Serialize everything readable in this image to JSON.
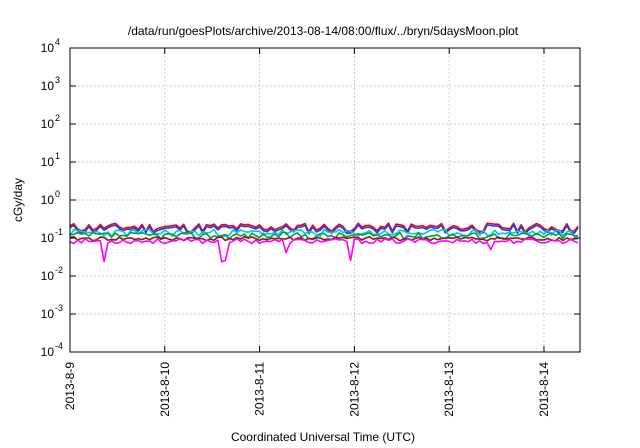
{
  "chart_data": {
    "type": "line",
    "title": "/data/run/goesPlots/archive/2013-08-14/08:00/flux/../bryn/5daysMoon.plot",
    "xlabel": "Coordinated Universal Time (UTC)",
    "ylabel": "cGy/day",
    "yscale": "log",
    "ylim": [
      0.0001,
      10000
    ],
    "xlim": [
      0,
      5.38
    ],
    "grid": true,
    "x_tick_values": [
      0,
      1,
      2,
      3,
      4,
      5
    ],
    "x_tick_labels": [
      "2013-8-9",
      "2013-8-10",
      "2013-8-11",
      "2013-8-12",
      "2013-8-13",
      "2013-8-14"
    ],
    "y_tick_values": [
      0.0001,
      0.001,
      0.01,
      0.1,
      1,
      10,
      100,
      1000,
      10000
    ],
    "y_tick_labels": [
      {
        "base": "10",
        "exp": "-4"
      },
      {
        "base": "10",
        "exp": "-3"
      },
      {
        "base": "10",
        "exp": "-2"
      },
      {
        "base": "10",
        "exp": "-1"
      },
      {
        "base": "10",
        "exp": "0"
      },
      {
        "base": "10",
        "exp": "1"
      },
      {
        "base": "10",
        "exp": "2"
      },
      {
        "base": "10",
        "exp": "3"
      },
      {
        "base": "10",
        "exp": "4"
      }
    ],
    "sample_step_days": 0.04,
    "dips": [
      {
        "x": 0.35,
        "depth": 0.28
      },
      {
        "x": 1.62,
        "depth": 0.32
      },
      {
        "x": 2.28,
        "depth": 0.45
      },
      {
        "x": 2.97,
        "depth": 0.32
      },
      {
        "x": 4.45,
        "depth": 0.55
      }
    ],
    "series": [
      {
        "color": "#ff0000",
        "base": 0.19,
        "amp": 0.55,
        "seed": 11
      },
      {
        "color": "#1a3cff",
        "base": 0.17,
        "amp": 0.55,
        "seed": 11
      },
      {
        "color": "#00c8e0",
        "base": 0.135,
        "amp": 0.45,
        "seed": 23
      },
      {
        "color": "#00a040",
        "base": 0.115,
        "amp": 0.4,
        "seed": 37
      },
      {
        "color": "#8b1a1a",
        "base": 0.095,
        "amp": 0.25,
        "seed": 41
      },
      {
        "color": "#ff00ff",
        "base": 0.082,
        "amp": 0.3,
        "seed": 53,
        "has_dips": true
      }
    ]
  }
}
